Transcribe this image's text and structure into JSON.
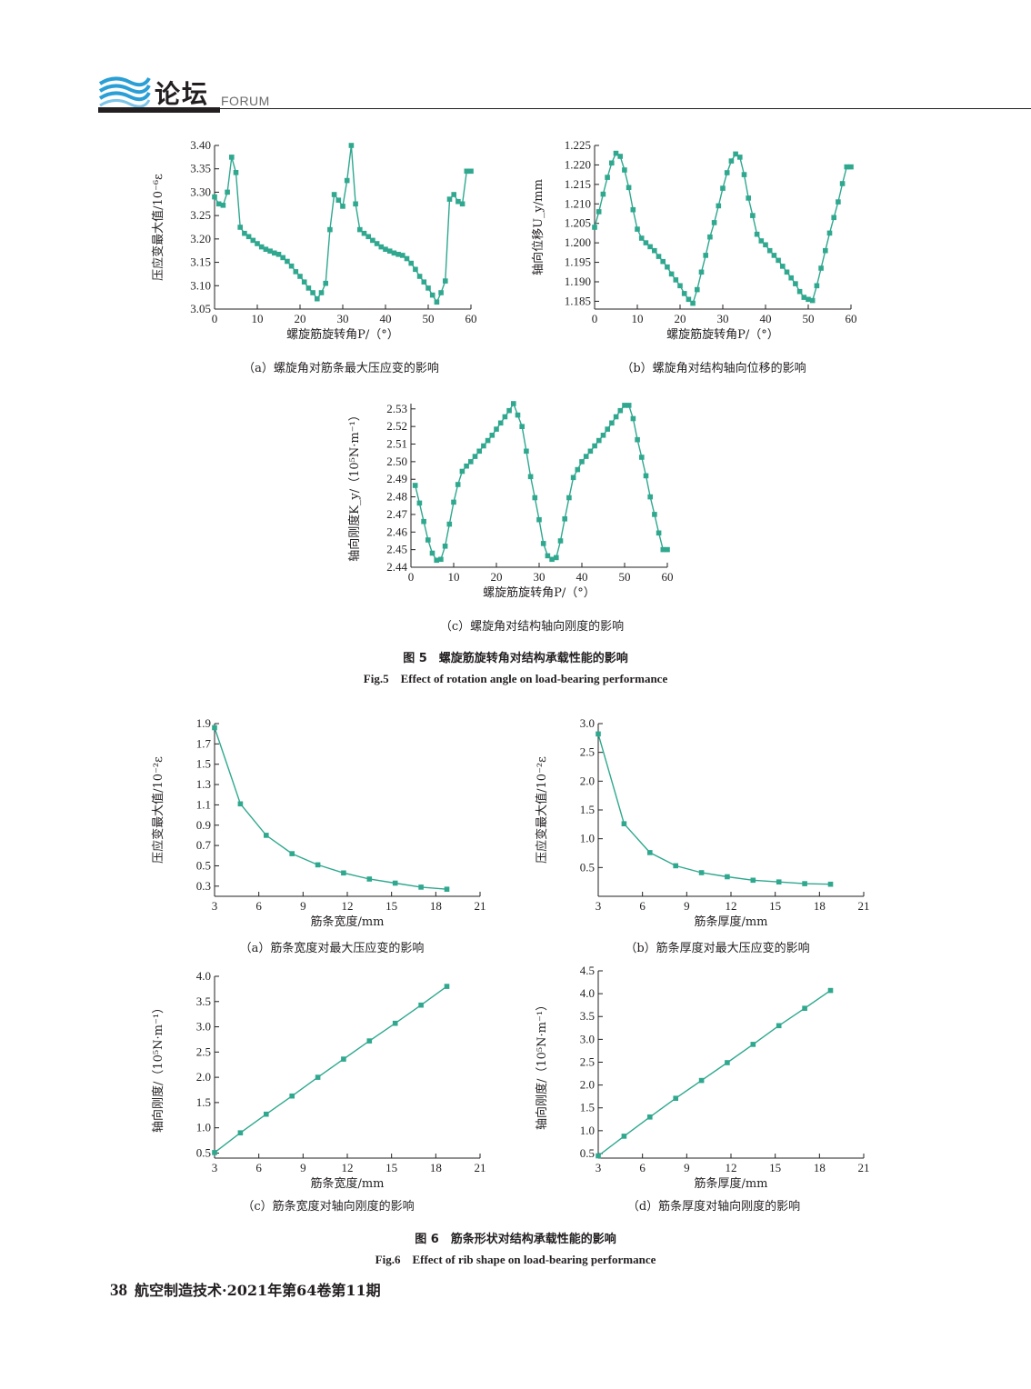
{
  "header": {
    "title": "论坛",
    "subtitle": "FORUM"
  },
  "colors": {
    "series": "#2fa88f",
    "text": "#231f20"
  },
  "figure5": {
    "title_cn": "图 5　螺旋筋旋转角对结构承载性能的影响",
    "title_en": "Fig.5　Effect of rotation angle on load-bearing performance"
  },
  "figure6": {
    "title_cn": "图 6　筋条形状对结构承载性能的影响",
    "title_en": "Fig.6　Effect of rib shape on load-bearing performance"
  },
  "footer": {
    "page": "38",
    "journal": "航空制造技术·2021年第64卷第11期"
  },
  "chart_data": [
    {
      "id": "fig5a",
      "type": "line",
      "caption": "（a）螺旋角对筋条最大压应变的影响",
      "xlabel": "螺旋筋旋转角P/（°）",
      "ylabel": "压应变最大值/10⁻⁶ε",
      "xlim": [
        0,
        60
      ],
      "ylim": [
        3.05,
        3.4
      ],
      "xticks": [
        0,
        10,
        20,
        30,
        40,
        50,
        60
      ],
      "yticks": [
        3.05,
        3.1,
        3.15,
        3.2,
        3.25,
        3.3,
        3.35,
        3.4
      ],
      "ytick_decimals": 2,
      "x": [
        0,
        1,
        2,
        3,
        4,
        5,
        6,
        7,
        8,
        9,
        10,
        11,
        12,
        13,
        14,
        15,
        16,
        17,
        18,
        19,
        20,
        21,
        22,
        23,
        24,
        25,
        26,
        27,
        28,
        29,
        30,
        31,
        32,
        33,
        34,
        35,
        36,
        37,
        38,
        39,
        40,
        41,
        42,
        43,
        44,
        45,
        46,
        47,
        48,
        49,
        50,
        51,
        52,
        53,
        54,
        55,
        56,
        57,
        58,
        59,
        60
      ],
      "y": [
        3.29,
        3.275,
        3.272,
        3.3,
        3.375,
        3.342,
        3.225,
        3.212,
        3.205,
        3.197,
        3.19,
        3.183,
        3.178,
        3.174,
        3.17,
        3.167,
        3.16,
        3.152,
        3.142,
        3.13,
        3.12,
        3.108,
        3.095,
        3.085,
        3.072,
        3.085,
        3.105,
        3.22,
        3.295,
        3.283,
        3.27,
        3.325,
        3.4,
        3.275,
        3.22,
        3.212,
        3.205,
        3.197,
        3.19,
        3.183,
        3.178,
        3.174,
        3.17,
        3.167,
        3.165,
        3.158,
        3.148,
        3.135,
        3.12,
        3.108,
        3.095,
        3.08,
        3.065,
        3.085,
        3.11,
        3.285,
        3.295,
        3.28,
        3.275,
        3.345,
        3.345
      ]
    },
    {
      "id": "fig5b",
      "type": "line",
      "caption": "（b）螺旋角对结构轴向位移的影响",
      "xlabel": "螺旋筋旋转角P/（°）",
      "ylabel": "轴向位移U_y/mm",
      "xlim": [
        0,
        60
      ],
      "ylim": [
        1.183,
        1.225
      ],
      "xticks": [
        0,
        10,
        20,
        30,
        40,
        50,
        60
      ],
      "yticks": [
        1.185,
        1.19,
        1.195,
        1.2,
        1.205,
        1.21,
        1.215,
        1.22,
        1.225
      ],
      "ytick_decimals": 3,
      "x": [
        0,
        1,
        2,
        3,
        4,
        5,
        6,
        7,
        8,
        9,
        10,
        11,
        12,
        13,
        14,
        15,
        16,
        17,
        18,
        19,
        20,
        21,
        22,
        23,
        24,
        25,
        26,
        27,
        28,
        29,
        30,
        31,
        32,
        33,
        34,
        35,
        36,
        37,
        38,
        39,
        40,
        41,
        42,
        43,
        44,
        45,
        46,
        47,
        48,
        49,
        50,
        51,
        52,
        53,
        54,
        55,
        56,
        57,
        58,
        59,
        60
      ],
      "y": [
        1.204,
        1.208,
        1.2125,
        1.2168,
        1.2205,
        1.223,
        1.2222,
        1.2187,
        1.2142,
        1.2085,
        1.2035,
        1.2012,
        1.2,
        1.199,
        1.198,
        1.1965,
        1.1952,
        1.1938,
        1.192,
        1.1905,
        1.189,
        1.187,
        1.1855,
        1.1845,
        1.188,
        1.1925,
        1.1968,
        1.2015,
        1.2052,
        1.2095,
        1.214,
        1.218,
        1.221,
        1.2228,
        1.222,
        1.2175,
        1.2115,
        1.207,
        1.2022,
        1.2005,
        1.1995,
        1.198,
        1.1968,
        1.1955,
        1.194,
        1.1925,
        1.191,
        1.1895,
        1.1875,
        1.186,
        1.1855,
        1.1852,
        1.189,
        1.1935,
        1.198,
        1.2025,
        1.2065,
        1.2105,
        1.2152,
        1.2195,
        1.2195
      ]
    },
    {
      "id": "fig5c",
      "type": "line",
      "caption": "（c）螺旋角对结构轴向刚度的影响",
      "xlabel": "螺旋筋旋转角P/（°）",
      "ylabel": "轴向刚度K_y/（10⁵N·m⁻¹）",
      "xlim": [
        0,
        60
      ],
      "ylim": [
        2.44,
        2.533
      ],
      "xticks": [
        0,
        10,
        20,
        30,
        40,
        50,
        60
      ],
      "yticks": [
        2.44,
        2.45,
        2.46,
        2.47,
        2.48,
        2.49,
        2.5,
        2.51,
        2.52,
        2.53
      ],
      "ytick_decimals": 2,
      "x": [
        1,
        2,
        3,
        4,
        5,
        6,
        7,
        8,
        9,
        10,
        11,
        12,
        13,
        14,
        15,
        16,
        17,
        18,
        19,
        20,
        21,
        22,
        23,
        24,
        25,
        26,
        27,
        28,
        29,
        30,
        31,
        32,
        33,
        34,
        35,
        36,
        37,
        38,
        39,
        40,
        41,
        42,
        43,
        44,
        45,
        46,
        47,
        48,
        49,
        50,
        51,
        52,
        53,
        54,
        55,
        56,
        57,
        58,
        59,
        60
      ],
      "y": [
        2.4865,
        2.4765,
        2.466,
        2.4555,
        2.448,
        2.444,
        2.4445,
        2.452,
        2.4645,
        2.477,
        2.487,
        2.4945,
        2.4975,
        2.5,
        2.503,
        2.506,
        2.509,
        2.512,
        2.515,
        2.5185,
        2.522,
        2.5255,
        2.529,
        2.533,
        2.5265,
        2.52,
        2.506,
        2.4915,
        2.4795,
        2.467,
        2.4535,
        2.4465,
        2.4445,
        2.4455,
        2.455,
        2.4675,
        2.4795,
        2.491,
        2.4955,
        2.5,
        2.503,
        2.506,
        2.509,
        2.512,
        2.515,
        2.5185,
        2.522,
        2.5255,
        2.529,
        2.532,
        2.532,
        2.5245,
        2.5125,
        2.5025,
        2.492,
        2.48,
        2.47,
        2.4595,
        2.45,
        2.45
      ]
    },
    {
      "id": "fig6a",
      "type": "line",
      "caption": "（a）筋条宽度对最大压应变的影响",
      "xlabel": "筋条宽度/mm",
      "ylabel": "压应变最大值/10⁻²ε",
      "xlim": [
        3,
        21
      ],
      "ylim": [
        0.2,
        1.9
      ],
      "xticks": [
        3,
        6,
        9,
        12,
        15,
        18,
        21
      ],
      "yticks": [
        0.3,
        0.5,
        0.7,
        0.9,
        1.1,
        1.3,
        1.5,
        1.7,
        1.9
      ],
      "ytick_decimals": 1,
      "x": [
        3,
        4.75,
        6.5,
        8.25,
        10,
        11.75,
        13.5,
        15.25,
        17,
        18.75
      ],
      "y": [
        1.86,
        1.11,
        0.8,
        0.62,
        0.51,
        0.43,
        0.37,
        0.33,
        0.29,
        0.27
      ]
    },
    {
      "id": "fig6b",
      "type": "line",
      "caption": "（b）筋条厚度对最大压应变的影响",
      "xlabel": "筋条厚度/mm",
      "ylabel": "压应变最大值/10⁻²ε",
      "xlim": [
        3,
        21
      ],
      "ylim": [
        0,
        3.0
      ],
      "xticks": [
        3,
        6,
        9,
        12,
        15,
        18,
        21
      ],
      "yticks": [
        0.5,
        1.0,
        1.5,
        2.0,
        2.5,
        3.0
      ],
      "ytick_decimals": 1,
      "x": [
        3,
        4.75,
        6.5,
        8.25,
        10,
        11.75,
        13.5,
        15.25,
        17,
        18.75
      ],
      "y": [
        2.82,
        1.26,
        0.76,
        0.53,
        0.41,
        0.34,
        0.28,
        0.25,
        0.22,
        0.21
      ]
    },
    {
      "id": "fig6c",
      "type": "line",
      "caption": "（c）筋条宽度对轴向刚度的影响",
      "xlabel": "筋条宽度/mm",
      "ylabel": "轴向刚度/（10⁵N·m⁻¹）",
      "xlim": [
        3,
        21
      ],
      "ylim": [
        0.4,
        4.0
      ],
      "xticks": [
        3,
        6,
        9,
        12,
        15,
        18,
        21
      ],
      "yticks": [
        0.5,
        1.0,
        1.5,
        2.0,
        2.5,
        3.0,
        3.5,
        4.0
      ],
      "ytick_decimals": 1,
      "x": [
        3,
        4.75,
        6.5,
        8.25,
        10,
        11.75,
        13.5,
        15.25,
        17,
        18.75
      ],
      "y": [
        0.51,
        0.9,
        1.27,
        1.63,
        2.0,
        2.36,
        2.72,
        3.07,
        3.43,
        3.8
      ]
    },
    {
      "id": "fig6d",
      "type": "line",
      "caption": "（d）筋条厚度对轴向刚度的影响",
      "xlabel": "筋条厚度/mm",
      "ylabel": "轴向刚度/（10⁵N·m⁻¹）",
      "xlim": [
        3,
        21
      ],
      "ylim": [
        0.4,
        4.5
      ],
      "xticks": [
        3,
        6,
        9,
        12,
        15,
        18,
        21
      ],
      "yticks": [
        0.5,
        1.0,
        1.5,
        2.0,
        2.5,
        3.0,
        3.5,
        4.0,
        4.5
      ],
      "ytick_decimals": 1,
      "x": [
        3,
        4.75,
        6.5,
        8.25,
        10,
        11.75,
        13.5,
        15.25,
        17,
        18.75
      ],
      "y": [
        0.45,
        0.88,
        1.3,
        1.71,
        2.1,
        2.49,
        2.89,
        3.3,
        3.68,
        4.07
      ]
    }
  ]
}
